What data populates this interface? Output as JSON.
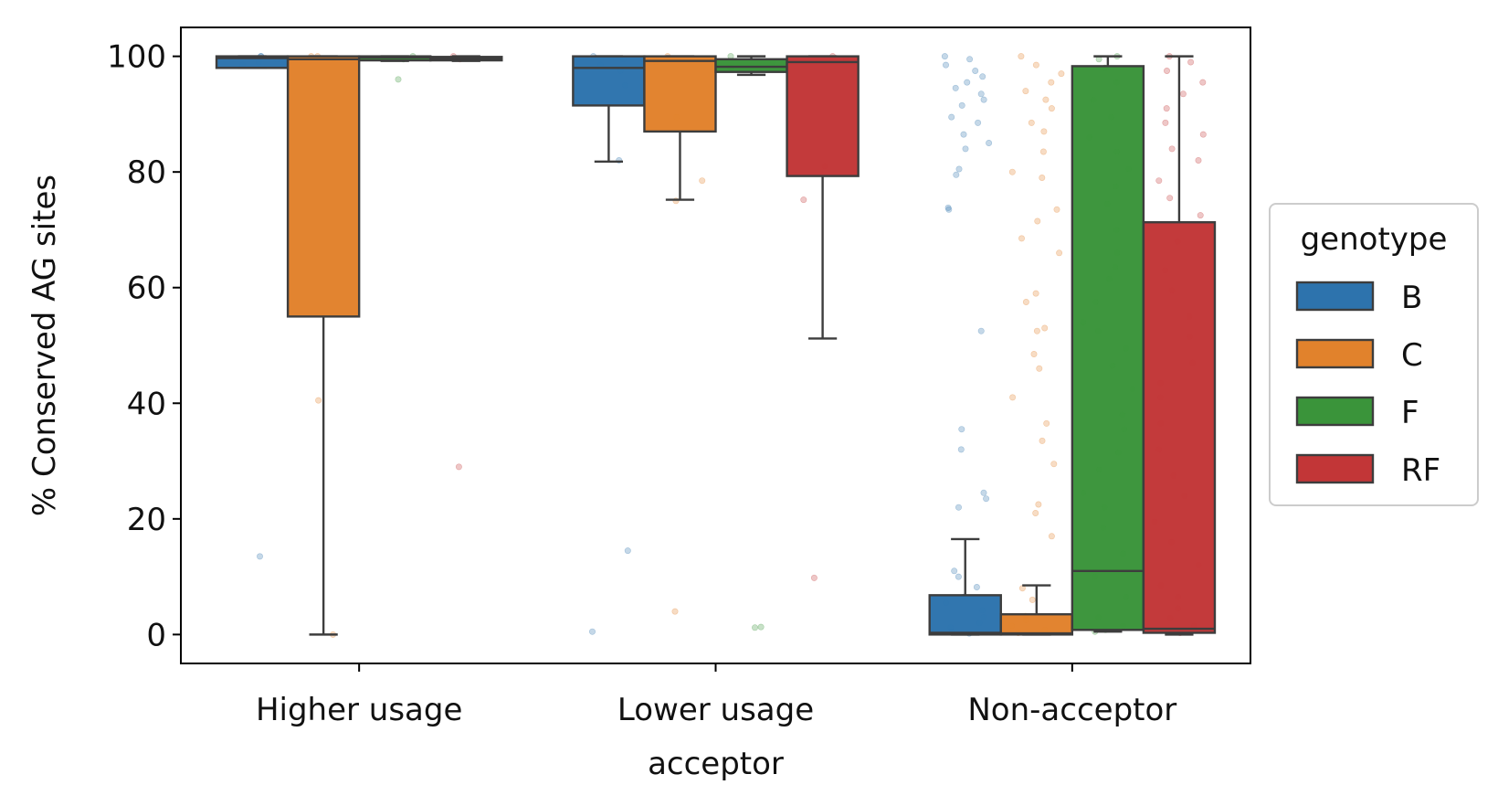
{
  "chart_data": {
    "type": "box",
    "title": "",
    "xlabel": "acceptor",
    "ylabel": "% Conserved AG sites",
    "ylim": [
      -5,
      105
    ],
    "yticks": [
      0,
      20,
      40,
      60,
      80,
      100
    ],
    "categories": [
      "Higher usage",
      "Lower usage",
      "Non-acceptor"
    ],
    "legend": {
      "title": "genotype",
      "placement": "center-right-outside"
    },
    "grid": false,
    "series": [
      {
        "name": "B",
        "color": "#2d73ad",
        "boxes": [
          {
            "whisker_low": 98.0,
            "q1": 98.0,
            "median": 99.7,
            "q3": 100.0,
            "whisker_high": 100.0
          },
          {
            "whisker_low": 81.8,
            "q1": 91.5,
            "median": 98.0,
            "q3": 100.0,
            "whisker_high": 100.0
          },
          {
            "whisker_low": 0.0,
            "q1": 0.0,
            "median": 0.3,
            "q3": 6.8,
            "whisker_high": 16.5
          }
        ],
        "points": [
          [
            13.5,
            98.5,
            99.0,
            99.5,
            100,
            100
          ],
          [
            0.5,
            14.5,
            82.0,
            95.0,
            97.5,
            98.5,
            99.5,
            100
          ],
          [
            0.2,
            0.5,
            1.2,
            2.0,
            3.0,
            4.2,
            5.5,
            6.5,
            8.2,
            10.0,
            11.0,
            22.0,
            23.5,
            24.5,
            32.0,
            35.5,
            52.5,
            73.5,
            73.8,
            79.5,
            80.5,
            84.0,
            85.0,
            86.5,
            88.5,
            89.5,
            91.5,
            92.5,
            93.5,
            94.5,
            95.5,
            96.5,
            97.5,
            98.5,
            99.5,
            100
          ]
        ]
      },
      {
        "name": "C",
        "color": "#e1822c",
        "boxes": [
          {
            "whisker_low": 0.0,
            "q1": 55.0,
            "median": 99.5,
            "q3": 100.0,
            "whisker_high": 100.0
          },
          {
            "whisker_low": 75.2,
            "q1": 87.0,
            "median": 99.2,
            "q3": 100.0,
            "whisker_high": 100.0
          },
          {
            "whisker_low": 0.0,
            "q1": 0.0,
            "median": 0.2,
            "q3": 3.5,
            "whisker_high": 8.5
          }
        ],
        "points": [
          [
            0.0,
            40.5,
            99.5,
            100,
            100
          ],
          [
            4.0,
            75.0,
            78.5,
            89.5,
            99.0,
            100
          ],
          [
            0.3,
            0.8,
            1.5,
            2.5,
            3.2,
            6.0,
            8.0,
            17.0,
            21.0,
            22.5,
            29.5,
            33.5,
            36.5,
            41.0,
            46.0,
            48.5,
            52.5,
            53.0,
            57.5,
            59.0,
            66.0,
            68.5,
            71.5,
            73.5,
            79.0,
            80.0,
            83.5,
            87.0,
            88.5,
            91.0,
            92.5,
            94.0,
            95.5,
            97.0,
            98.5,
            100
          ]
        ]
      },
      {
        "name": "F",
        "color": "#3a943a",
        "boxes": [
          {
            "whisker_low": 99.2,
            "q1": 99.3,
            "median": 99.8,
            "q3": 100.0,
            "whisker_high": 100.0
          },
          {
            "whisker_low": 96.8,
            "q1": 97.3,
            "median": 98.2,
            "q3": 99.5,
            "whisker_high": 100.0
          },
          {
            "whisker_low": 0.5,
            "q1": 0.8,
            "median": 11.0,
            "q3": 98.3,
            "whisker_high": 100.0
          }
        ],
        "points": [
          [
            96.0,
            99.5,
            100
          ],
          [
            1.2,
            1.3,
            98.0,
            99.0,
            100
          ],
          [
            0.5,
            0.8,
            1.5,
            3.0,
            6.5,
            10.0,
            14.0,
            18.5,
            22.0,
            24.5,
            28.5,
            31.5,
            35.5,
            38.0,
            42.5,
            46.5,
            49.5,
            52.5,
            54.0,
            57.5,
            61.5,
            63.5,
            66.0,
            70.0,
            74.5,
            77.5,
            80.5,
            83.5,
            86.0,
            89.5,
            92.5,
            95.5,
            98.0,
            99.5,
            100
          ]
        ]
      },
      {
        "name": "RF",
        "color": "#c23637",
        "boxes": [
          {
            "whisker_low": 99.2,
            "q1": 99.3,
            "median": 99.6,
            "q3": 99.9,
            "whisker_high": 100.0
          },
          {
            "whisker_low": 51.2,
            "q1": 79.3,
            "median": 99.0,
            "q3": 100.0,
            "whisker_high": 100.0
          },
          {
            "whisker_low": 0.0,
            "q1": 0.3,
            "median": 1.0,
            "q3": 71.3,
            "whisker_high": 100.0
          }
        ],
        "points": [
          [
            29.0,
            99.5,
            100
          ],
          [
            9.8,
            75.2,
            81.0,
            99.5,
            100
          ],
          [
            0.3,
            0.8,
            1.5,
            2.8,
            4.5,
            6.5,
            8.5,
            12.0,
            16.0,
            19.5,
            24.0,
            27.5,
            32.0,
            36.5,
            41.0,
            43.5,
            47.0,
            51.5,
            55.0,
            59.5,
            63.0,
            68.0,
            72.5,
            75.5,
            78.5,
            82.0,
            84.0,
            86.5,
            88.5,
            91.0,
            93.5,
            95.5,
            97.5,
            99.0,
            100
          ]
        ]
      }
    ]
  }
}
